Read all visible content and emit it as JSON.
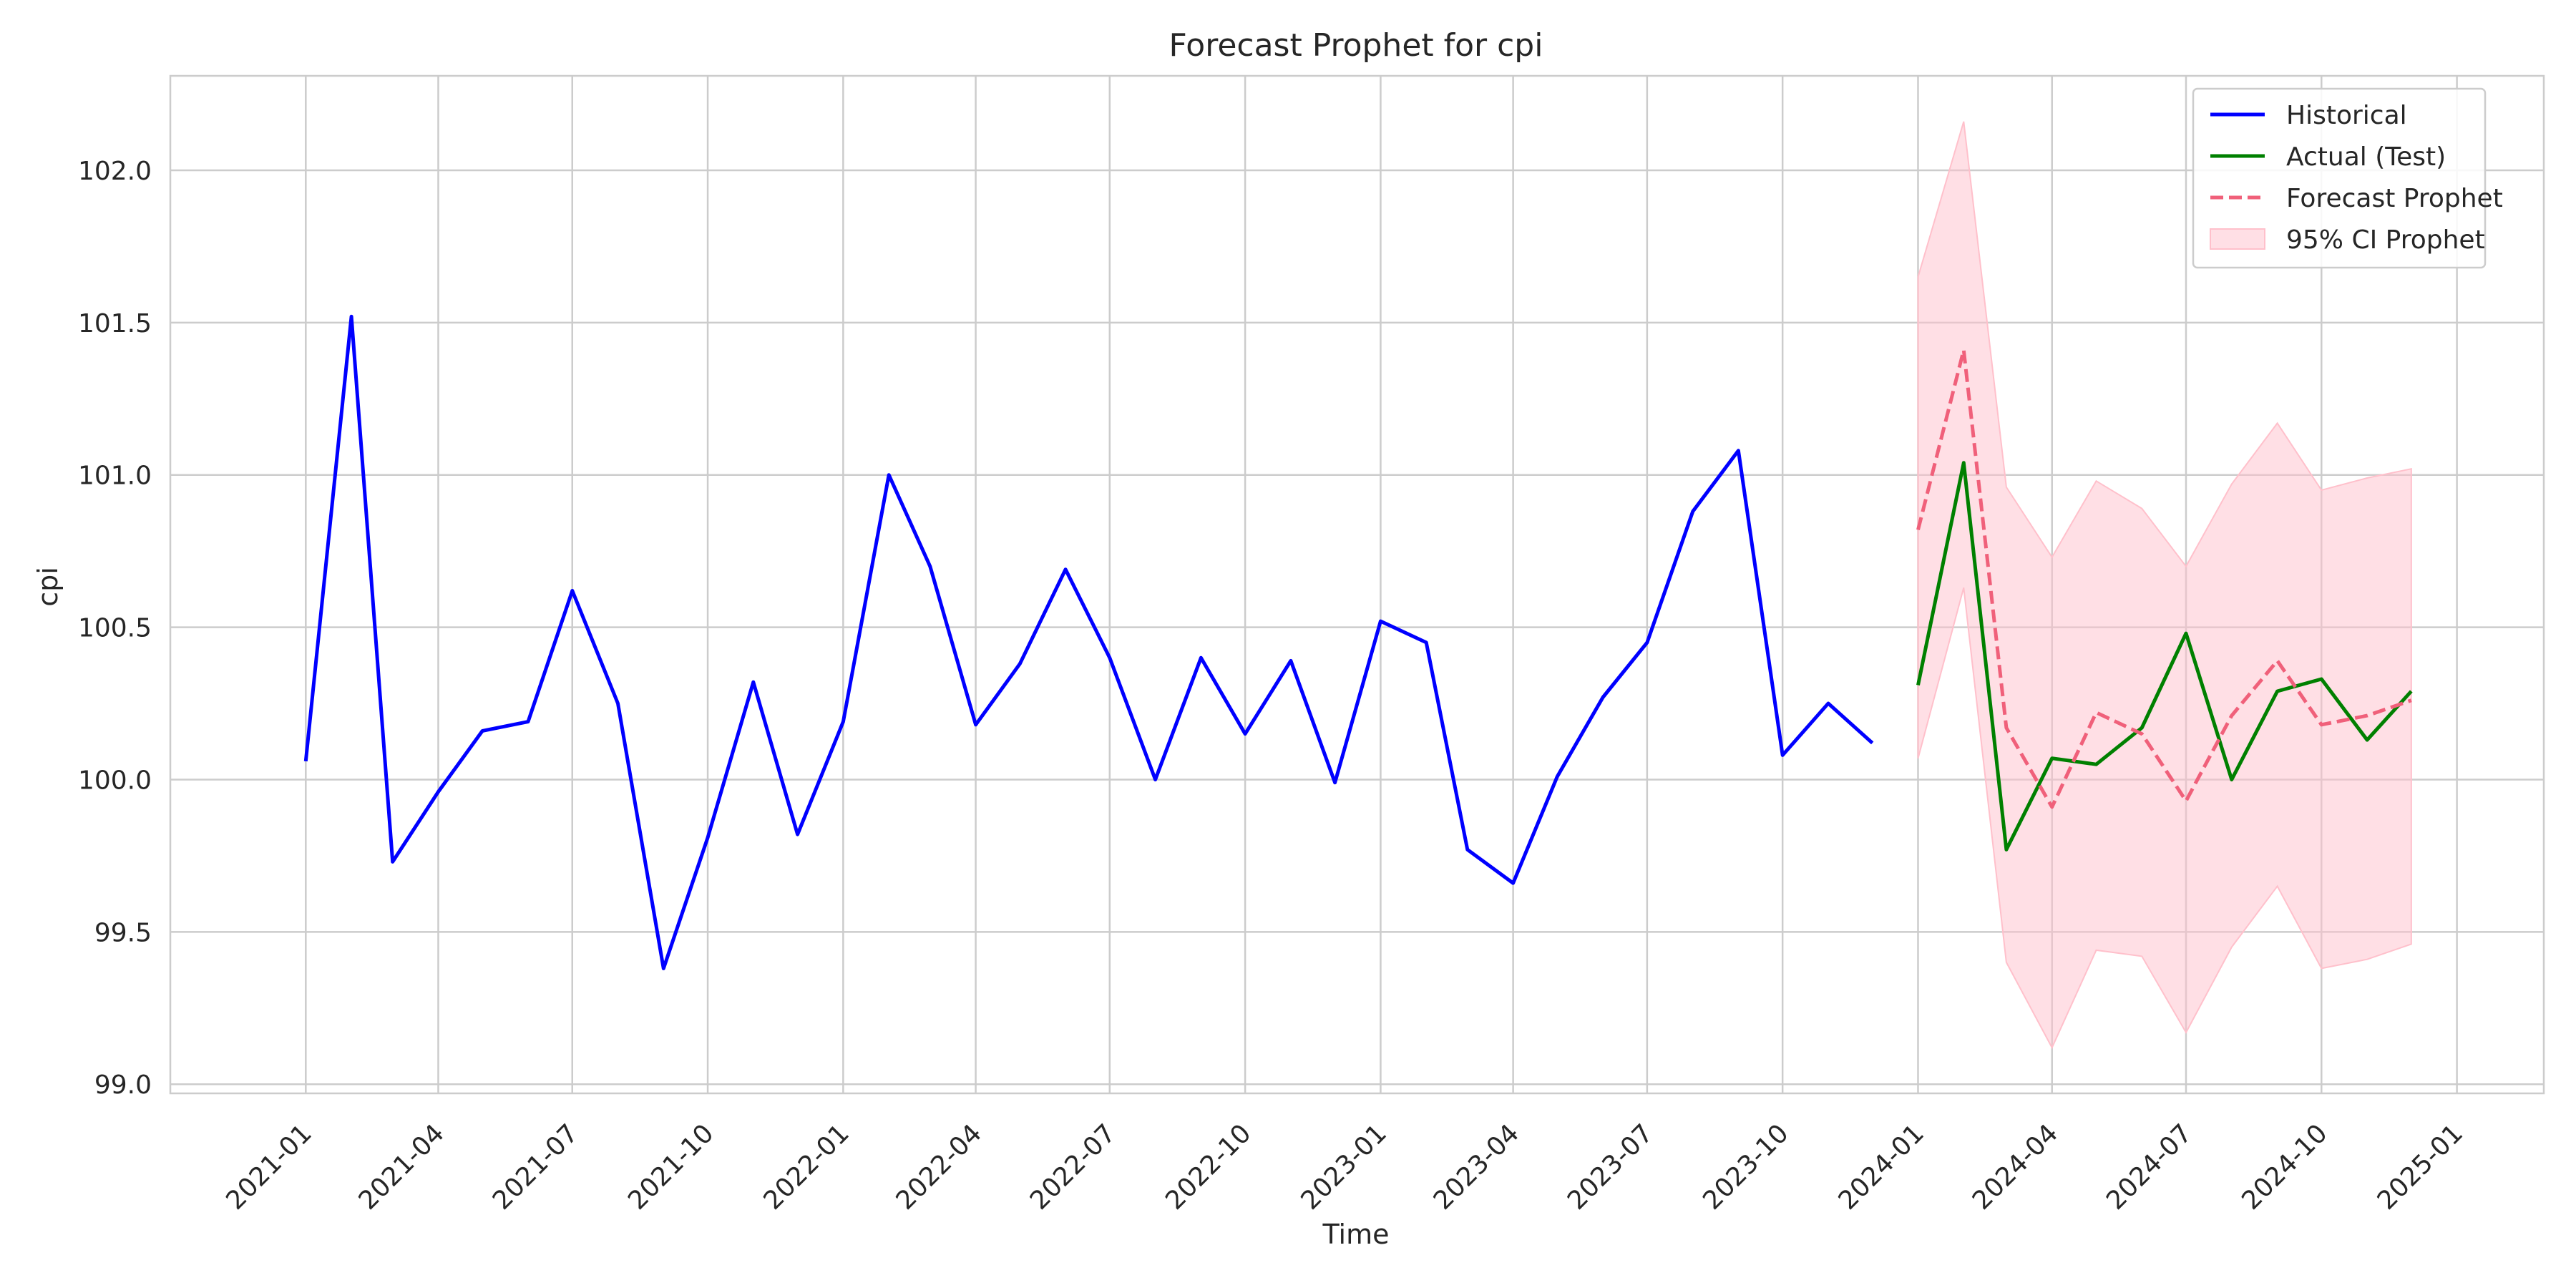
{
  "chart_data": {
    "type": "line",
    "title": "Forecast Prophet for cpi",
    "xlabel": "Time",
    "ylabel": "cpi",
    "xlim": [
      "2020-10-01",
      "2025-03-01"
    ],
    "ylim": [
      98.97,
      102.31
    ],
    "x_ticks": [
      "2021-01",
      "2021-04",
      "2021-07",
      "2021-10",
      "2022-01",
      "2022-04",
      "2022-07",
      "2022-10",
      "2023-01",
      "2023-04",
      "2023-07",
      "2023-10",
      "2024-01",
      "2024-04",
      "2024-07",
      "2024-10",
      "2025-01"
    ],
    "y_ticks": [
      "99.0",
      "99.5",
      "100.0",
      "100.5",
      "101.0",
      "101.5",
      "102.0"
    ],
    "grid": true,
    "legend_position": "top-right",
    "legend": [
      "Historical",
      "Actual (Test)",
      "Forecast Prophet",
      "95% CI Prophet"
    ],
    "series": [
      {
        "name": "Historical",
        "color": "#0000ff",
        "style": "solid",
        "x": [
          "2021-01-01",
          "2021-02-01",
          "2021-03-01",
          "2021-04-01",
          "2021-05-01",
          "2021-06-01",
          "2021-07-01",
          "2021-08-01",
          "2021-09-01",
          "2021-10-01",
          "2021-11-01",
          "2021-12-01",
          "2022-01-01",
          "2022-02-01",
          "2022-03-01",
          "2022-04-01",
          "2022-05-01",
          "2022-06-01",
          "2022-07-01",
          "2022-08-01",
          "2022-09-01",
          "2022-10-01",
          "2022-11-01",
          "2022-12-01",
          "2023-01-01",
          "2023-02-01",
          "2023-03-01",
          "2023-04-01",
          "2023-05-01",
          "2023-06-01",
          "2023-07-01",
          "2023-08-01",
          "2023-09-01",
          "2023-10-01",
          "2023-11-01",
          "2023-12-01"
        ],
        "values": [
          100.06,
          101.52,
          99.73,
          99.96,
          100.16,
          100.19,
          100.62,
          100.25,
          99.38,
          99.81,
          100.32,
          99.82,
          100.19,
          101.0,
          100.7,
          100.18,
          100.38,
          100.69,
          100.4,
          100.0,
          100.4,
          100.15,
          100.39,
          99.99,
          100.52,
          100.45,
          99.77,
          99.66,
          100.01,
          100.27,
          100.45,
          100.88,
          101.08,
          100.08,
          100.25,
          100.12
        ]
      },
      {
        "name": "Actual (Test)",
        "color": "#008000",
        "style": "solid",
        "x": [
          "2024-01-01",
          "2024-02-01",
          "2024-03-01",
          "2024-04-01",
          "2024-05-01",
          "2024-06-01",
          "2024-07-01",
          "2024-08-01",
          "2024-09-01",
          "2024-10-01",
          "2024-11-01",
          "2024-12-01"
        ],
        "values": [
          100.31,
          101.04,
          99.77,
          100.07,
          100.05,
          100.17,
          100.48,
          100.0,
          100.29,
          100.33,
          100.13,
          100.29
        ]
      },
      {
        "name": "Forecast Prophet",
        "color": "#f0607a",
        "style": "dashed",
        "x": [
          "2024-01-01",
          "2024-02-01",
          "2024-03-01",
          "2024-04-01",
          "2024-05-01",
          "2024-06-01",
          "2024-07-01",
          "2024-08-01",
          "2024-09-01",
          "2024-10-01",
          "2024-11-01",
          "2024-12-01"
        ],
        "values": [
          100.82,
          101.41,
          100.17,
          99.91,
          100.22,
          100.15,
          99.93,
          100.21,
          100.39,
          100.18,
          100.21,
          100.26
        ]
      }
    ],
    "confidence_interval": {
      "name": "95% CI Prophet",
      "color": "#ffc0cb",
      "x": [
        "2024-01-01",
        "2024-02-01",
        "2024-03-01",
        "2024-04-01",
        "2024-05-01",
        "2024-06-01",
        "2024-07-01",
        "2024-08-01",
        "2024-09-01",
        "2024-10-01",
        "2024-11-01",
        "2024-12-01"
      ],
      "lower": [
        100.07,
        100.63,
        99.4,
        99.12,
        99.44,
        99.42,
        99.17,
        99.45,
        99.65,
        99.38,
        99.41,
        99.46
      ],
      "upper": [
        101.65,
        102.16,
        100.96,
        100.73,
        100.98,
        100.89,
        100.7,
        100.97,
        101.17,
        100.95,
        100.99,
        101.02
      ]
    }
  }
}
